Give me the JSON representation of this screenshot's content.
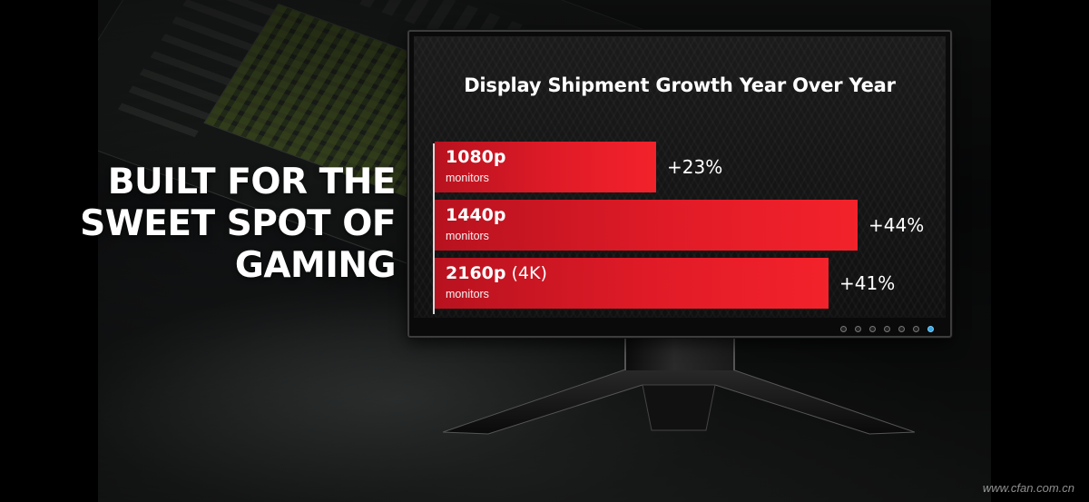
{
  "headline": {
    "lines": [
      "BUILT FOR THE",
      "SWEET SPOT OF",
      "GAMING"
    ]
  },
  "chart_data": {
    "type": "bar",
    "orientation": "horizontal",
    "title": "Display Shipment Growth Year Over Year",
    "categories": [
      "1080p",
      "1440p",
      "2160p (4K)"
    ],
    "bars": [
      {
        "name": "1080p",
        "extra": "",
        "sub": "monitors",
        "value": 23,
        "value_label": "+23%"
      },
      {
        "name": "1440p",
        "extra": "",
        "sub": "monitors",
        "value": 44,
        "value_label": "+44%"
      },
      {
        "name": "2160p",
        "extra": " (4K)",
        "sub": "monitors",
        "value": 41,
        "value_label": "+41%"
      }
    ],
    "values": [
      23,
      44,
      41
    ],
    "unit": "%",
    "xlim": [
      0,
      44
    ],
    "bar_color": "#e01b27",
    "grid": false,
    "legend": "none"
  },
  "watermark": "www.cfan.com.cn"
}
